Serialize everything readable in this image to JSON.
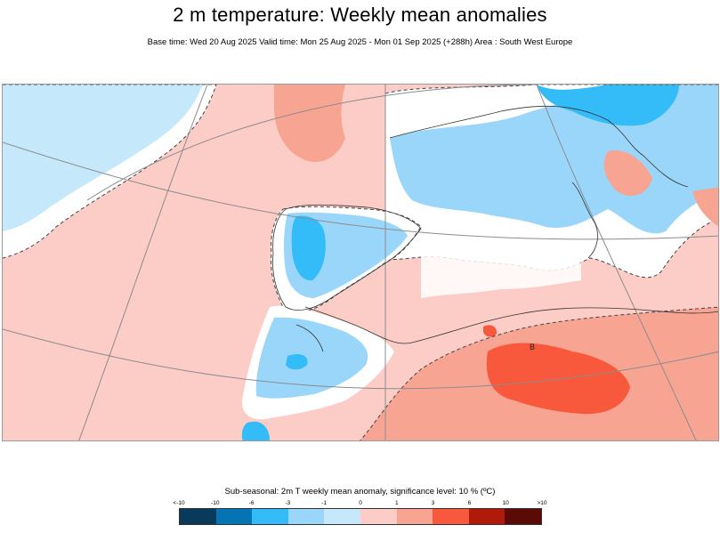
{
  "header": {
    "title": "2 m temperature: Weekly mean anomalies",
    "subtitle": "Base time: Wed 20 Aug 2025 Valid time: Mon 25 Aug 2025 - Mon 01 Sep 2025 (+288h) Area : South West Europe"
  },
  "map": {
    "area": "South West Europe",
    "marker_label": "B",
    "colors": {
      "sea_positive": "#fcccc6",
      "moderate_positive": "#f8a493",
      "strong_positive": "#f8583b",
      "neutral": "#ffffff",
      "weak_negative": "#c6e8fb",
      "moderate_negative": "#99d6fa",
      "strong_negative": "#33bcf8",
      "outline": "#333333",
      "grid": "#8c8c8c"
    }
  },
  "legend": {
    "title": "Sub-seasonal: 2m T weekly mean anomaly, significance level: 10 % (ºC)",
    "ticks": [
      "<-10",
      "-10",
      "-6",
      "-3",
      "-1",
      "0",
      "1",
      "3",
      "6",
      "10",
      ">10"
    ],
    "colors": [
      "#0a3a59",
      "#0574b4",
      "#33bcf8",
      "#99d6fa",
      "#c6e8fb",
      "#fcccc6",
      "#f8a493",
      "#f8583b",
      "#b01a0b",
      "#5c0a06"
    ]
  }
}
